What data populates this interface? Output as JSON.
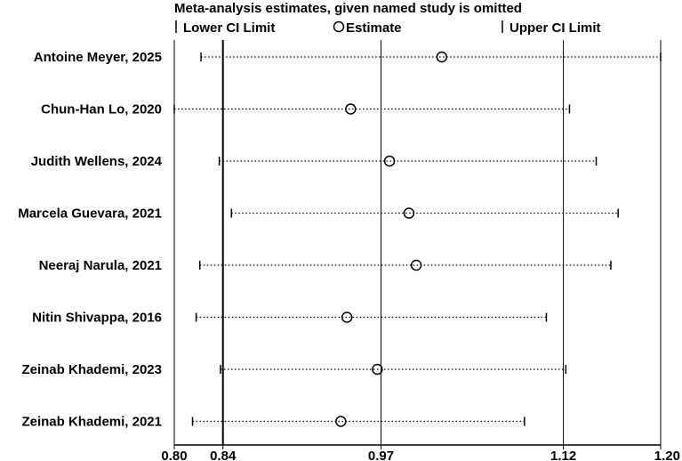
{
  "chart_data": {
    "type": "scatter",
    "title": "Meta-analysis estimates, given named study is omitted",
    "legend": {
      "lower": "Lower CI Limit",
      "estimate": "Estimate",
      "upper": "Upper CI Limit"
    },
    "x_ticks": [
      {
        "label": "0.80",
        "value": 0.8
      },
      {
        "label": "0.84",
        "value": 0.84
      },
      {
        "label": "0.97",
        "value": 0.97
      },
      {
        "label": "1.12",
        "value": 1.12
      },
      {
        "label": "1.20",
        "value": 1.2
      }
    ],
    "reference_lines": [
      0.84,
      0.97,
      1.12
    ],
    "xlim": [
      0.8,
      1.2
    ],
    "studies": [
      {
        "name": "Antoine Meyer, 2025",
        "lower": 0.822,
        "estimate": 1.02,
        "upper": 1.2
      },
      {
        "name": "Chun-Han Lo, 2020",
        "lower": 0.8,
        "estimate": 0.945,
        "upper": 1.125
      },
      {
        "name": "Judith Wellens, 2024",
        "lower": 0.837,
        "estimate": 0.977,
        "upper": 1.147
      },
      {
        "name": "Marcela Guevara, 2021",
        "lower": 0.847,
        "estimate": 0.993,
        "upper": 1.165
      },
      {
        "name": "Neeraj Narula, 2021",
        "lower": 0.821,
        "estimate": 0.999,
        "upper": 1.159
      },
      {
        "name": "Nitin Shivappa, 2016",
        "lower": 0.818,
        "estimate": 0.942,
        "upper": 1.106
      },
      {
        "name": "Zeinab Khademi, 2023",
        "lower": 0.838,
        "estimate": 0.967,
        "upper": 1.122
      },
      {
        "name": "Zeinab Khademi,  2021",
        "lower": 0.815,
        "estimate": 0.937,
        "upper": 1.088
      }
    ]
  }
}
